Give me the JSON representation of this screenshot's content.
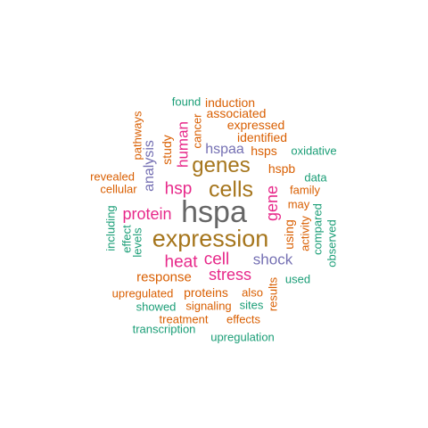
{
  "palette": {
    "teal": "#1b9e77",
    "orange": "#d95f02",
    "purple": "#7570b3",
    "magenta": "#e7298a",
    "olive": "#a6761d",
    "gray": "#666666"
  },
  "words": [
    {
      "id": "hspa",
      "text": "hspa",
      "color": "#666666"
    },
    {
      "id": "expression",
      "text": "expression",
      "color": "#a6761d"
    },
    {
      "id": "cells",
      "text": "cells",
      "color": "#a6761d"
    },
    {
      "id": "genes",
      "text": "genes",
      "color": "#a6761d"
    },
    {
      "id": "heat",
      "text": "heat",
      "color": "#e7298a"
    },
    {
      "id": "cell",
      "text": "cell",
      "color": "#e7298a"
    },
    {
      "id": "stress",
      "text": "stress",
      "color": "#e7298a"
    },
    {
      "id": "shock",
      "text": "shock",
      "color": "#7570b3"
    },
    {
      "id": "protein",
      "text": "protein",
      "color": "#e7298a"
    },
    {
      "id": "hsp",
      "text": "hsp",
      "color": "#e7298a"
    },
    {
      "id": "gene",
      "text": "gene",
      "color": "#e7298a"
    },
    {
      "id": "human",
      "text": "human",
      "color": "#e7298a"
    },
    {
      "id": "hspaa",
      "text": "hspaa",
      "color": "#7570b3"
    },
    {
      "id": "analysis",
      "text": "analysis",
      "color": "#7570b3"
    },
    {
      "id": "response",
      "text": "response",
      "color": "#d95f02"
    },
    {
      "id": "proteins",
      "text": "proteins",
      "color": "#d95f02"
    },
    {
      "id": "upregulated",
      "text": "upregulated",
      "color": "#d95f02"
    },
    {
      "id": "signaling",
      "text": "signaling",
      "color": "#d95f02"
    },
    {
      "id": "treatment",
      "text": "treatment",
      "color": "#d95f02"
    },
    {
      "id": "effects",
      "text": "effects",
      "color": "#d95f02"
    },
    {
      "id": "showed",
      "text": "showed",
      "color": "#1b9e77"
    },
    {
      "id": "sites",
      "text": "sites",
      "color": "#1b9e77"
    },
    {
      "id": "also",
      "text": "also",
      "color": "#d95f02"
    },
    {
      "id": "used",
      "text": "used",
      "color": "#1b9e77"
    },
    {
      "id": "transcription",
      "text": "transcription",
      "color": "#1b9e77"
    },
    {
      "id": "upregulation",
      "text": "upregulation",
      "color": "#1b9e77"
    },
    {
      "id": "results",
      "text": "results",
      "color": "#d95f02"
    },
    {
      "id": "using",
      "text": "using",
      "color": "#d95f02"
    },
    {
      "id": "activity",
      "text": "activity",
      "color": "#d95f02"
    },
    {
      "id": "compared",
      "text": "compared",
      "color": "#1b9e77"
    },
    {
      "id": "observed",
      "text": "observed",
      "color": "#1b9e77"
    },
    {
      "id": "may",
      "text": "may",
      "color": "#d95f02"
    },
    {
      "id": "family",
      "text": "family",
      "color": "#d95f02"
    },
    {
      "id": "data",
      "text": "data",
      "color": "#1b9e77"
    },
    {
      "id": "hspb",
      "text": "hspb",
      "color": "#d95f02"
    },
    {
      "id": "hsps",
      "text": "hsps",
      "color": "#d95f02"
    },
    {
      "id": "oxidative",
      "text": "oxidative",
      "color": "#1b9e77"
    },
    {
      "id": "identified",
      "text": "identified",
      "color": "#d95f02"
    },
    {
      "id": "expressed",
      "text": "expressed",
      "color": "#d95f02"
    },
    {
      "id": "associated",
      "text": "associated",
      "color": "#d95f02"
    },
    {
      "id": "induction",
      "text": "induction",
      "color": "#d95f02"
    },
    {
      "id": "found",
      "text": "found",
      "color": "#1b9e77"
    },
    {
      "id": "cancer",
      "text": "cancer",
      "color": "#d95f02"
    },
    {
      "id": "study",
      "text": "study",
      "color": "#d95f02"
    },
    {
      "id": "pathways",
      "text": "pathways",
      "color": "#d95f02"
    },
    {
      "id": "revealed",
      "text": "revealed",
      "color": "#d95f02"
    },
    {
      "id": "cellular",
      "text": "cellular",
      "color": "#d95f02"
    },
    {
      "id": "including",
      "text": "including",
      "color": "#1b9e77"
    },
    {
      "id": "effect",
      "text": "effect",
      "color": "#1b9e77"
    },
    {
      "id": "levels",
      "text": "levels",
      "color": "#1b9e77"
    }
  ]
}
